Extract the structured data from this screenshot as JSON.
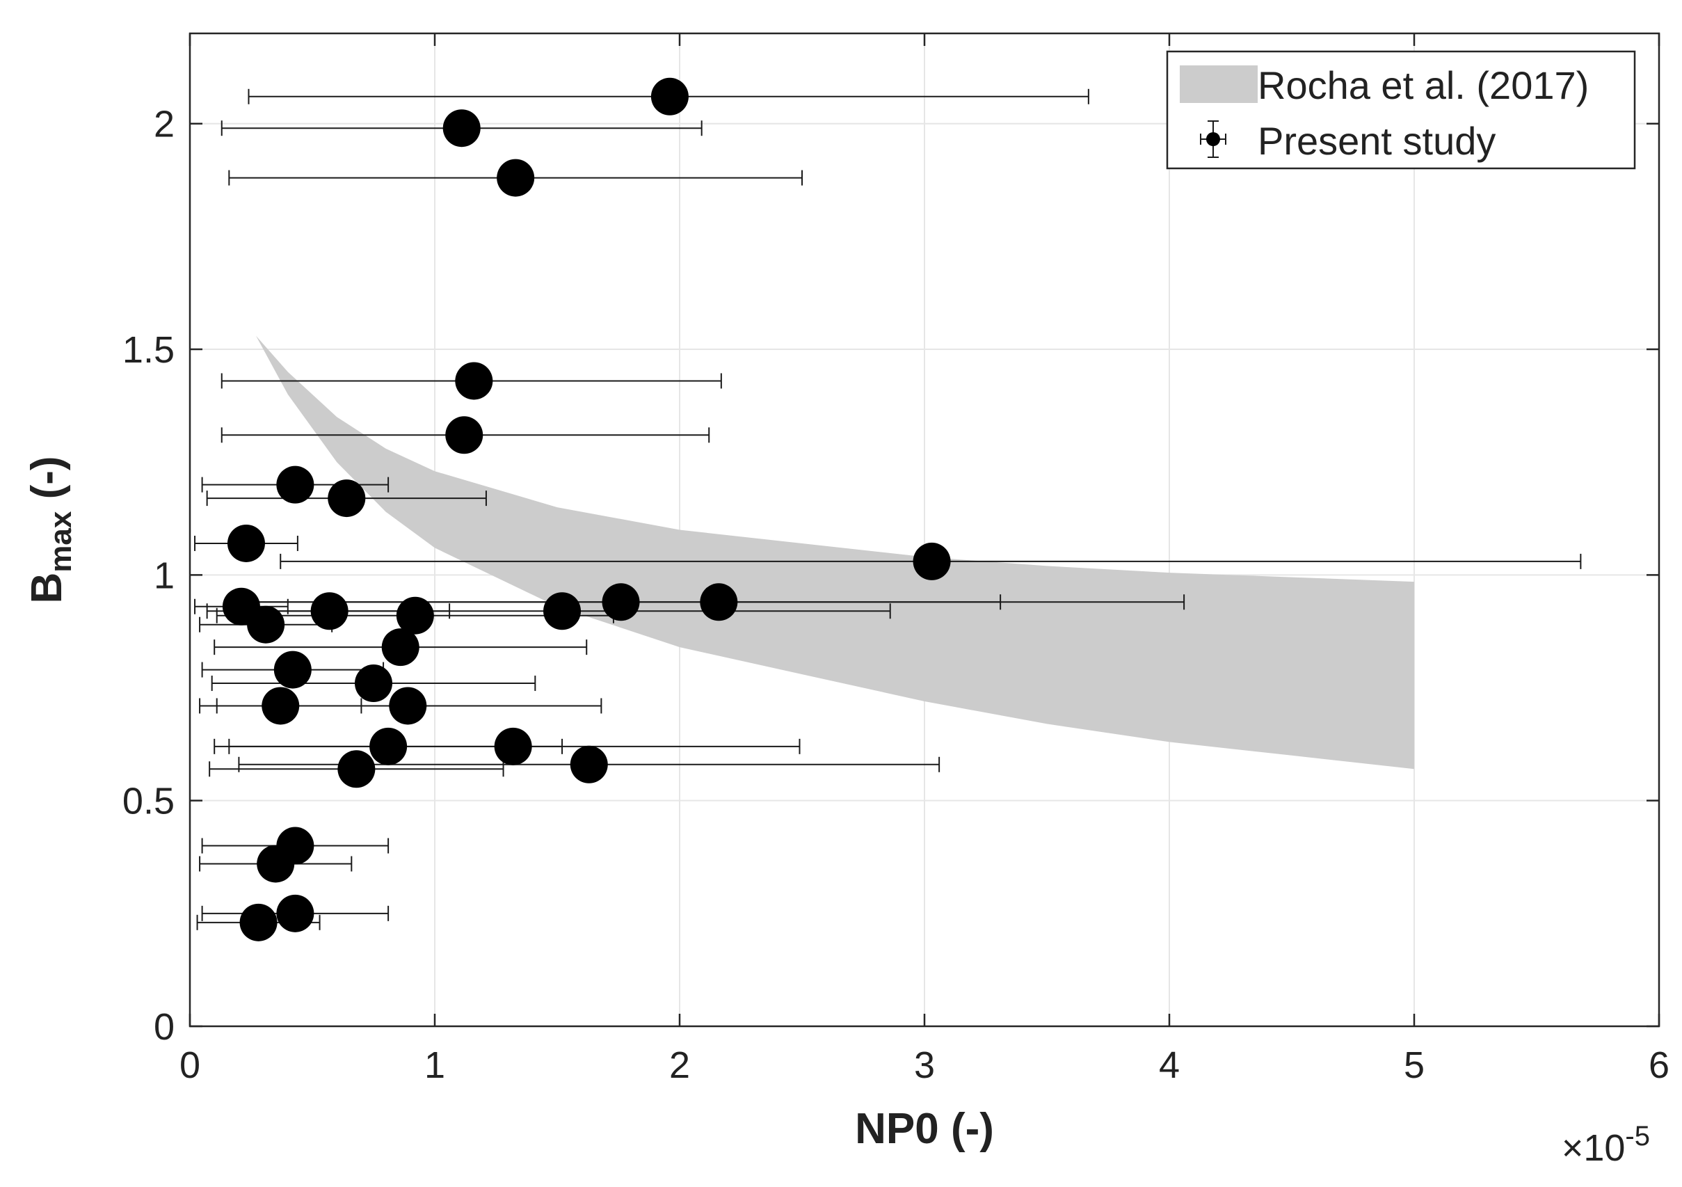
{
  "chart_data": {
    "type": "scatter",
    "xlabel": "NP0 (-)",
    "ylabel_main": "B",
    "ylabel_sub": "max",
    "ylabel_tail": " (-)",
    "x_multiplier_prefix": "×10",
    "x_multiplier_exp": "-5",
    "xlim": [
      0,
      6
    ],
    "ylim": [
      0,
      2.2
    ],
    "x_ticks": [
      0,
      1,
      2,
      3,
      4,
      5,
      6
    ],
    "x_tick_labels": [
      "0",
      "1",
      "2",
      "3",
      "4",
      "5",
      "6"
    ],
    "y_ticks": [
      0,
      0.5,
      1,
      1.5,
      2
    ],
    "y_tick_labels": [
      "0",
      "0.5",
      "1",
      "1.5",
      "2"
    ],
    "grid": true,
    "legend_position": "top-right",
    "legend": [
      "Rocha et al. (2017)",
      "Present study"
    ],
    "band": {
      "name": "Rocha et al. (2017)",
      "color": "#cccccc",
      "x_min": 0.27,
      "x_max": 5.0,
      "upper": [
        [
          0.27,
          1.53
        ],
        [
          0.4,
          1.45
        ],
        [
          0.6,
          1.35
        ],
        [
          0.8,
          1.28
        ],
        [
          1.0,
          1.23
        ],
        [
          1.5,
          1.15
        ],
        [
          2.0,
          1.1
        ],
        [
          2.5,
          1.07
        ],
        [
          3.0,
          1.04
        ],
        [
          3.5,
          1.02
        ],
        [
          4.0,
          1.005
        ],
        [
          4.5,
          0.995
        ],
        [
          5.0,
          0.985
        ]
      ],
      "lower": [
        [
          0.27,
          1.53
        ],
        [
          0.4,
          1.4
        ],
        [
          0.6,
          1.25
        ],
        [
          0.8,
          1.14
        ],
        [
          1.0,
          1.06
        ],
        [
          1.5,
          0.93
        ],
        [
          2.0,
          0.84
        ],
        [
          2.5,
          0.78
        ],
        [
          3.0,
          0.72
        ],
        [
          3.5,
          0.67
        ],
        [
          4.0,
          0.63
        ],
        [
          4.5,
          0.6
        ],
        [
          5.0,
          0.57
        ]
      ]
    },
    "series": [
      {
        "name": "Present study",
        "color": "#000000",
        "points": [
          {
            "x": 1.96,
            "y": 2.06,
            "xmin": 0.24,
            "xmax": 3.67
          },
          {
            "x": 1.11,
            "y": 1.99,
            "xmin": 0.13,
            "xmax": 2.09
          },
          {
            "x": 1.33,
            "y": 1.88,
            "xmin": 0.16,
            "xmax": 2.5
          },
          {
            "x": 1.16,
            "y": 1.43,
            "xmin": 0.13,
            "xmax": 2.17
          },
          {
            "x": 1.12,
            "y": 1.31,
            "xmin": 0.13,
            "xmax": 2.12
          },
          {
            "x": 0.43,
            "y": 1.2,
            "xmin": 0.05,
            "xmax": 0.81
          },
          {
            "x": 0.64,
            "y": 1.17,
            "xmin": 0.07,
            "xmax": 1.21
          },
          {
            "x": 0.23,
            "y": 1.07,
            "xmin": 0.02,
            "xmax": 0.44
          },
          {
            "x": 3.03,
            "y": 1.03,
            "xmin": 0.37,
            "xmax": 5.68
          },
          {
            "x": 0.21,
            "y": 0.93,
            "xmin": 0.02,
            "xmax": 0.4
          },
          {
            "x": 0.57,
            "y": 0.92,
            "xmin": 0.07,
            "xmax": 1.06
          },
          {
            "x": 1.52,
            "y": 0.92,
            "xmin": 0.18,
            "xmax": 2.86
          },
          {
            "x": 1.76,
            "y": 0.94,
            "xmin": 0.21,
            "xmax": 3.31
          },
          {
            "x": 2.16,
            "y": 0.94,
            "xmin": 0.26,
            "xmax": 4.06
          },
          {
            "x": 0.31,
            "y": 0.89,
            "xmin": 0.04,
            "xmax": 0.58
          },
          {
            "x": 0.92,
            "y": 0.91,
            "xmin": 0.11,
            "xmax": 1.73
          },
          {
            "x": 0.86,
            "y": 0.84,
            "xmin": 0.1,
            "xmax": 1.62
          },
          {
            "x": 0.42,
            "y": 0.79,
            "xmin": 0.05,
            "xmax": 0.79
          },
          {
            "x": 0.75,
            "y": 0.76,
            "xmin": 0.09,
            "xmax": 1.41
          },
          {
            "x": 0.37,
            "y": 0.71,
            "xmin": 0.04,
            "xmax": 0.7
          },
          {
            "x": 0.89,
            "y": 0.71,
            "xmin": 0.11,
            "xmax": 1.68
          },
          {
            "x": 0.81,
            "y": 0.62,
            "xmin": 0.1,
            "xmax": 1.52
          },
          {
            "x": 1.32,
            "y": 0.62,
            "xmin": 0.16,
            "xmax": 2.49
          },
          {
            "x": 0.68,
            "y": 0.57,
            "xmin": 0.08,
            "xmax": 1.28
          },
          {
            "x": 1.63,
            "y": 0.58,
            "xmin": 0.2,
            "xmax": 3.06
          },
          {
            "x": 0.43,
            "y": 0.4,
            "xmin": 0.05,
            "xmax": 0.81
          },
          {
            "x": 0.35,
            "y": 0.36,
            "xmin": 0.04,
            "xmax": 0.66
          },
          {
            "x": 0.43,
            "y": 0.25,
            "xmin": 0.05,
            "xmax": 0.81
          },
          {
            "x": 0.28,
            "y": 0.23,
            "xmin": 0.03,
            "xmax": 0.53
          }
        ]
      }
    ]
  }
}
